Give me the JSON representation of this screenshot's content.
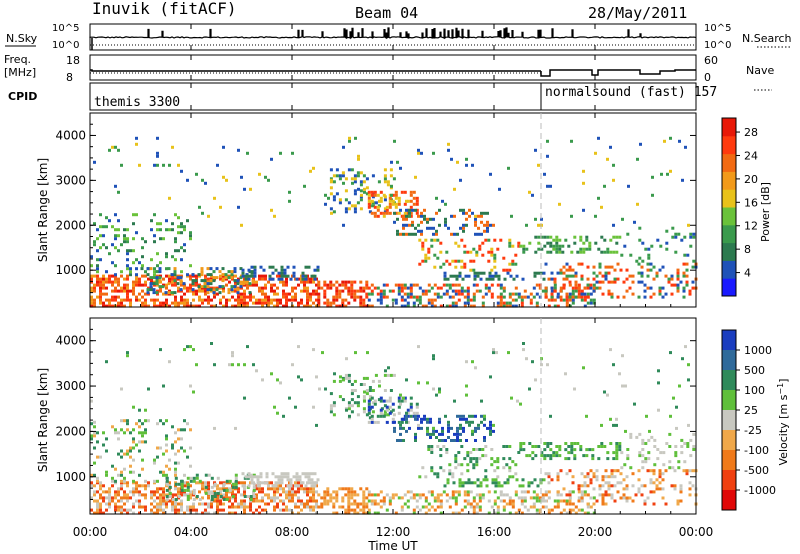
{
  "header": {
    "station": "Inuvik (fitACF)",
    "beam": "Beam 04",
    "date": "28/May/2011"
  },
  "side_labels": {
    "nsky": "N.Sky",
    "freq": "Freq.",
    "freq_unit": "[MHz]",
    "cpid": "CPID",
    "nsearch": "N.Search",
    "nave": "Nave"
  },
  "top_ticks": {
    "nsky_hi": "10^5",
    "nsky_lo": "10^0",
    "freq_hi": "18",
    "freq_lo": "8",
    "nsearch_hi": "10^5",
    "nsearch_lo": "10^0",
    "nave_hi": "60",
    "nave_lo": "0"
  },
  "cpid": {
    "left_label": "themis 3300",
    "right_label": "normalsound (fast) 157"
  },
  "axes": {
    "ylabel": "Slant Range [km]",
    "xlabel": "Time UT",
    "x_ticks": [
      "00:00",
      "04:00",
      "08:00",
      "12:00",
      "16:00",
      "20:00",
      "00:00"
    ],
    "y_ticks": [
      "1000",
      "2000",
      "3000",
      "4000"
    ]
  },
  "chart_data": [
    {
      "type": "heatmap",
      "title": "",
      "xlabel": "",
      "ylabel": "Slant Range [km]",
      "xlim": [
        "00:00",
        "24:00"
      ],
      "ylim": [
        180,
        4500
      ],
      "colorbar": {
        "label": "Power [dB]",
        "ticks": [
          "4",
          "8",
          "12",
          "16",
          "20",
          "24",
          "28"
        ],
        "colors": [
          "#1a1aff",
          "#1f52b8",
          "#2c7a4f",
          "#3a9a4c",
          "#6ac23a",
          "#e8c21a",
          "#f29a1a",
          "#f26a12",
          "#ff3a0e",
          "#e81808"
        ]
      }
    },
    {
      "type": "heatmap",
      "title": "",
      "xlabel": "Time UT",
      "ylabel": "Slant Range [km]",
      "xlim": [
        "00:00",
        "24:00"
      ],
      "ylim": [
        180,
        4500
      ],
      "colorbar": {
        "label": "Velocity [m s^-1]",
        "ticks": [
          "1000",
          "500",
          "100",
          "25",
          "-25",
          "-100",
          "-500",
          "-1000"
        ],
        "colors": [
          "#1a3dbf",
          "#2f6a9a",
          "#2f8a5a",
          "#5fbf3a",
          "#c8c8c0",
          "#f0a84a",
          "#f07a1a",
          "#f04010",
          "#e00808"
        ]
      }
    }
  ]
}
